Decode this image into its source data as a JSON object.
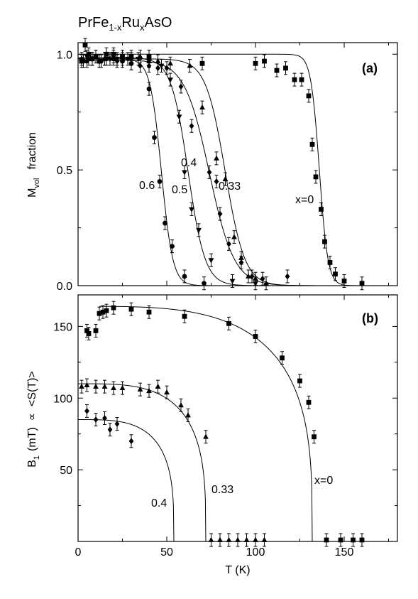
{
  "title": {
    "main": "PrFe",
    "sub1": "1-x",
    "mid1": "Ru",
    "sub2": "x",
    "end": "AsO"
  },
  "chart_data": [
    {
      "type": "scatter",
      "panel": "(a)",
      "ylabel": {
        "main": "M",
        "sub": "vol",
        "rest": "fraction"
      },
      "xlim": [
        0,
        180
      ],
      "ylim": [
        0,
        1.05
      ],
      "yticks": [
        0.0,
        0.5,
        1.0
      ],
      "ytick_labels": [
        "0.0",
        "0.5",
        "1.0"
      ],
      "xticks": [
        0,
        50,
        100,
        150
      ],
      "series": [
        {
          "name": "x=0",
          "marker": "square",
          "points": [
            [
              2,
              0.97
            ],
            [
              4,
              1.04
            ],
            [
              6,
              1.0
            ],
            [
              8,
              0.98
            ],
            [
              10,
              0.99
            ],
            [
              12,
              0.97
            ],
            [
              16,
              1.0
            ],
            [
              20,
              1.0
            ],
            [
              25,
              0.99
            ],
            [
              30,
              0.99
            ],
            [
              40,
              0.99
            ],
            [
              70,
              0.96
            ],
            [
              100,
              0.96
            ],
            [
              105,
              0.97
            ],
            [
              112,
              0.93
            ],
            [
              117,
              0.94
            ],
            [
              122,
              0.89
            ],
            [
              126,
              0.89
            ],
            [
              130,
              0.82
            ],
            [
              132,
              0.61
            ],
            [
              134,
              0.47
            ],
            [
              137,
              0.33
            ],
            [
              139,
              0.19
            ],
            [
              142,
              0.1
            ],
            [
              145,
              0.05
            ],
            [
              150,
              0.02
            ],
            [
              160,
              0.01
            ]
          ],
          "fit": {
            "label": "x=0",
            "tc": 136,
            "w": 2.4,
            "amp": 1.0
          }
        },
        {
          "name": "0.33",
          "marker": "triangle-up",
          "points": [
            [
              2,
              0.97
            ],
            [
              6,
              0.98
            ],
            [
              10,
              0.99
            ],
            [
              15,
              0.98
            ],
            [
              20,
              0.99
            ],
            [
              25,
              0.98
            ],
            [
              30,
              0.98
            ],
            [
              35,
              0.99
            ],
            [
              40,
              0.97
            ],
            [
              45,
              0.97
            ],
            [
              52,
              0.96
            ],
            [
              63,
              0.95
            ],
            [
              70,
              0.77
            ],
            [
              78,
              0.55
            ],
            [
              83,
              0.46
            ],
            [
              88,
              0.21
            ],
            [
              92,
              0.12
            ],
            [
              96,
              0.04
            ],
            [
              100,
              0.03
            ],
            [
              106,
              0.01
            ]
          ],
          "fit": {
            "label": "0.33",
            "tc": 83,
            "w": 5.5,
            "amp": 0.98
          }
        },
        {
          "name": "0.4",
          "marker": "diamond",
          "points": [
            [
              2,
              0.98
            ],
            [
              5,
              0.97
            ],
            [
              8,
              0.98
            ],
            [
              12,
              0.97
            ],
            [
              15,
              0.98
            ],
            [
              18,
              0.98
            ],
            [
              22,
              0.97
            ],
            [
              25,
              0.97
            ],
            [
              30,
              0.96
            ],
            [
              35,
              0.95
            ],
            [
              40,
              0.95
            ],
            [
              45,
              0.94
            ],
            [
              50,
              0.94
            ],
            [
              58,
              0.86
            ],
            [
              64,
              0.69
            ],
            [
              74,
              0.49
            ],
            [
              78,
              0.45
            ],
            [
              80,
              0.31
            ],
            [
              85,
              0.18
            ],
            [
              92,
              0.1
            ],
            [
              98,
              0.04
            ],
            [
              104,
              0.03
            ],
            [
              118,
              0.04
            ]
          ],
          "fit": {
            "label": "0.4",
            "tc": 74,
            "w": 7.0,
            "amp": 0.975
          }
        },
        {
          "name": "0.5",
          "marker": "triangle-down",
          "points": [
            [
              5,
              0.99
            ],
            [
              10,
              0.99
            ],
            [
              16,
              0.98
            ],
            [
              22,
              0.98
            ],
            [
              28,
              0.98
            ],
            [
              34,
              0.98
            ],
            [
              40,
              0.97
            ],
            [
              47,
              0.95
            ],
            [
              52,
              0.89
            ],
            [
              57,
              0.73
            ],
            [
              60,
              0.49
            ],
            [
              64,
              0.33
            ],
            [
              68,
              0.24
            ],
            [
              75,
              0.11
            ],
            [
              87,
              0.02
            ],
            [
              100,
              0.01
            ]
          ],
          "fit": {
            "label": "0.5",
            "tc": 62,
            "w": 4.8,
            "amp": 0.985
          }
        },
        {
          "name": "0.6",
          "marker": "circle",
          "points": [
            [
              3,
              0.97
            ],
            [
              8,
              0.98
            ],
            [
              13,
              0.97
            ],
            [
              20,
              0.98
            ],
            [
              25,
              0.97
            ],
            [
              30,
              0.96
            ],
            [
              40,
              0.85
            ],
            [
              43,
              0.64
            ],
            [
              46,
              0.45
            ],
            [
              49,
              0.27
            ],
            [
              53,
              0.17
            ],
            [
              60,
              0.04
            ],
            [
              71,
              0.01
            ]
          ],
          "fit": {
            "label": "0.6",
            "tc": 47,
            "w": 3.2,
            "amp": 0.98
          }
        }
      ],
      "annotations": [
        "(a)",
        "x=0",
        "0.33",
        "0.4",
        "0.5",
        "0.6"
      ]
    },
    {
      "type": "scatter",
      "panel": "(b)",
      "xlabel": "T (K)",
      "ylabel": {
        "main": "B",
        "sub": "1",
        "rest": "(mT)  ∝  <S(T)>"
      },
      "xlim": [
        0,
        180
      ],
      "ylim": [
        0,
        172
      ],
      "yticks": [
        50,
        100,
        150
      ],
      "ytick_labels": [
        "50",
        "100",
        "150"
      ],
      "xticks": [
        0,
        50,
        100,
        150
      ],
      "xtick_labels": [
        "0",
        "50",
        "100",
        "150"
      ],
      "series": [
        {
          "name": "x=0",
          "marker": "square",
          "points": [
            [
              5,
              147
            ],
            [
              6,
              145
            ],
            [
              10,
              147
            ],
            [
              12,
              159
            ],
            [
              14,
              160
            ],
            [
              16,
              161
            ],
            [
              20,
              163
            ],
            [
              30,
              162
            ],
            [
              40,
              160
            ],
            [
              60,
              157
            ],
            [
              85,
              152
            ],
            [
              100,
              143
            ],
            [
              115,
              128
            ],
            [
              125,
              112
            ],
            [
              130,
              97
            ],
            [
              133,
              73
            ],
            [
              140,
              1
            ],
            [
              148,
              1
            ],
            [
              155,
              1
            ],
            [
              160,
              1
            ]
          ],
          "fit": {
            "label": "x=0",
            "A": 164,
            "tn": 132
          }
        },
        {
          "name": "0.33",
          "marker": "triangle-up",
          "points": [
            [
              2,
              108
            ],
            [
              5,
              109
            ],
            [
              10,
              108
            ],
            [
              15,
              108
            ],
            [
              20,
              107
            ],
            [
              25,
              107
            ],
            [
              35,
              106
            ],
            [
              40,
              105
            ],
            [
              45,
              108
            ],
            [
              50,
              104
            ],
            [
              58,
              95
            ],
            [
              62,
              88
            ],
            [
              72,
              73
            ],
            [
              75,
              1
            ],
            [
              80,
              1
            ],
            [
              85,
              1
            ],
            [
              90,
              1
            ],
            [
              95,
              1
            ],
            [
              100,
              1
            ],
            [
              105,
              1
            ]
          ],
          "fit": {
            "label": "0.33",
            "A": 110,
            "tn": 72
          }
        },
        {
          "name": "0.4",
          "marker": "diamond",
          "points": [
            [
              5,
              91
            ],
            [
              10,
              85
            ],
            [
              15,
              86
            ],
            [
              18,
              78
            ],
            [
              22,
              82
            ],
            [
              30,
              70
            ]
          ],
          "fit": {
            "label": "0.4",
            "A": 85,
            "tn": 54
          }
        }
      ],
      "annotations": [
        "(b)",
        "x=0",
        "0.33",
        "0.4"
      ]
    }
  ]
}
